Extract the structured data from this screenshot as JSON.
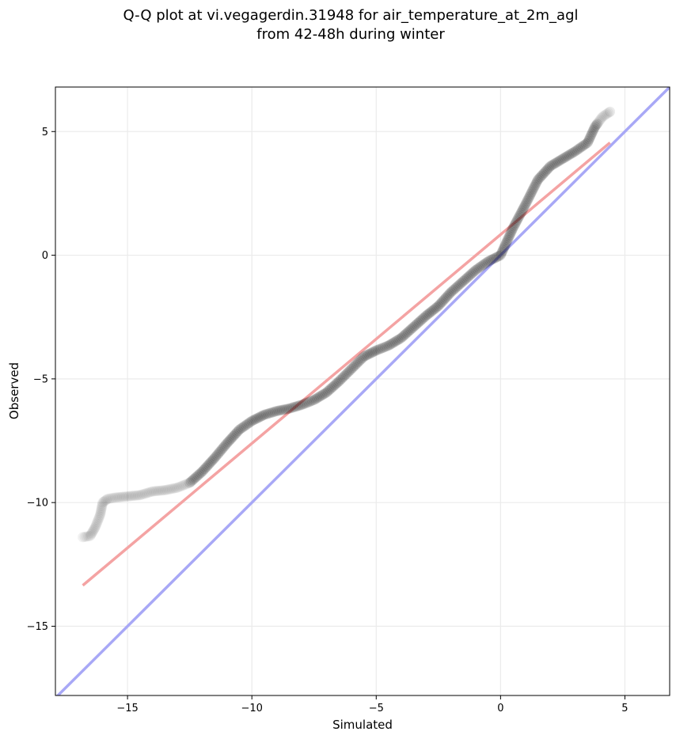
{
  "chart_data": {
    "type": "scatter",
    "title_line1": "Q-Q plot at vi.vegagerdin.31948 for air_temperature_at_2m_agl",
    "title_line2": "from 42-48h during winter",
    "xlabel": "Simulated",
    "ylabel": "Observed",
    "xlim": [
      -17.9,
      6.8
    ],
    "ylim": [
      -17.8,
      6.8
    ],
    "xticks": [
      -15,
      -10,
      -5,
      0,
      5
    ],
    "yticks": [
      -15,
      -10,
      -5,
      0,
      5
    ],
    "xtick_labels": [
      "−15",
      "−10",
      "−5",
      "0",
      "5"
    ],
    "ytick_labels": [
      "−15",
      "−10",
      "−5",
      "0",
      "5"
    ],
    "grid": true,
    "colors": {
      "points": "#000000",
      "fit_line": "#f4a3a3",
      "identity_line": "#a8a8f6",
      "grid": "#ebebeb"
    },
    "identity_line": {
      "x": [
        -17.9,
        6.8
      ],
      "y": [
        -17.9,
        6.8
      ]
    },
    "fit_line": {
      "x": [
        -16.8,
        4.4
      ],
      "y": [
        -13.35,
        4.55
      ]
    },
    "quantile_curve": {
      "x": [
        -16.8,
        -16.5,
        -16.3,
        -16.1,
        -16.0,
        -15.8,
        -15.5,
        -15.0,
        -14.5,
        -14.0,
        -13.5,
        -13.0,
        -12.5,
        -12.0,
        -11.5,
        -11.0,
        -10.5,
        -10.0,
        -9.5,
        -9.0,
        -8.5,
        -8.0,
        -7.5,
        -7.0,
        -6.5,
        -6.0,
        -5.5,
        -5.0,
        -4.5,
        -4.0,
        -3.5,
        -3.0,
        -2.5,
        -2.0,
        -1.5,
        -1.0,
        -0.5,
        0.0,
        0.5,
        1.0,
        1.5,
        2.0,
        2.5,
        3.0,
        3.5,
        3.8,
        4.1,
        4.4
      ],
      "y": [
        -11.4,
        -11.35,
        -11.0,
        -10.5,
        -10.0,
        -9.85,
        -9.8,
        -9.75,
        -9.7,
        -9.55,
        -9.5,
        -9.4,
        -9.2,
        -8.75,
        -8.2,
        -7.6,
        -7.05,
        -6.7,
        -6.45,
        -6.3,
        -6.2,
        -6.05,
        -5.85,
        -5.55,
        -5.1,
        -4.6,
        -4.1,
        -3.85,
        -3.65,
        -3.35,
        -2.9,
        -2.45,
        -2.05,
        -1.5,
        -1.05,
        -0.6,
        -0.25,
        0.0,
        1.1,
        2.05,
        3.05,
        3.6,
        3.9,
        4.2,
        4.55,
        5.2,
        5.6,
        5.8
      ]
    }
  }
}
